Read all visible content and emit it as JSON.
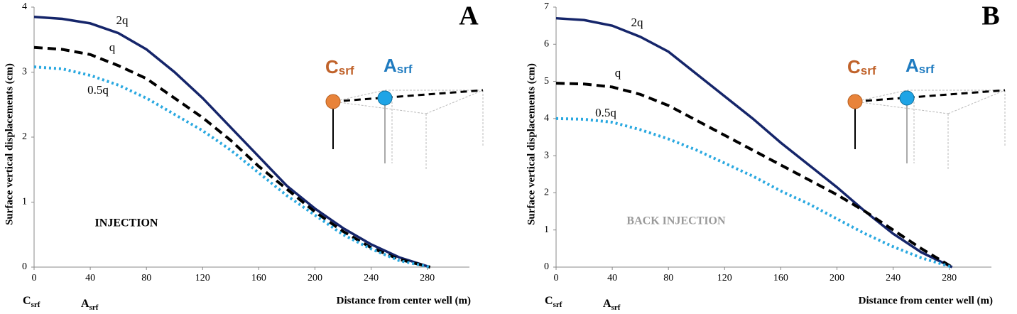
{
  "chart_data": [
    {
      "type": "line",
      "panel": "A",
      "annotation": "INJECTION",
      "annotation_color": "#000000",
      "y_label": "Surface vertical displacements (cm)",
      "x_label": "Distance from center well (m)",
      "x": [
        0,
        20,
        40,
        60,
        80,
        100,
        120,
        140,
        160,
        180,
        200,
        220,
        240,
        260,
        282
      ],
      "xlim": [
        0,
        310
      ],
      "xticks": [
        0,
        40,
        80,
        120,
        160,
        200,
        240,
        280
      ],
      "ylim": [
        0,
        4
      ],
      "yticks": [
        0,
        1,
        2,
        3,
        4
      ],
      "markers": [
        {
          "letter": "C",
          "sub": "srf"
        },
        {
          "letter": "A",
          "sub": "srf"
        }
      ],
      "series": [
        {
          "name": "2q",
          "color": "#15256a",
          "style": "solid",
          "values": [
            3.85,
            3.82,
            3.75,
            3.6,
            3.35,
            3.0,
            2.6,
            2.15,
            1.7,
            1.25,
            0.9,
            0.6,
            0.35,
            0.15,
            0
          ]
        },
        {
          "name": "q",
          "color": "#000000",
          "style": "dashed",
          "values": [
            3.38,
            3.35,
            3.27,
            3.1,
            2.9,
            2.6,
            2.3,
            1.95,
            1.55,
            1.2,
            0.85,
            0.55,
            0.3,
            0.12,
            0
          ]
        },
        {
          "name": "0.5q",
          "color": "#29a8e0",
          "style": "dotted",
          "values": [
            3.08,
            3.05,
            2.95,
            2.8,
            2.6,
            2.35,
            2.1,
            1.8,
            1.45,
            1.1,
            0.8,
            0.5,
            0.28,
            0.1,
            0
          ]
        }
      ]
    },
    {
      "type": "line",
      "panel": "B",
      "annotation": "BACK INJECTION",
      "annotation_color": "#9a9a9a",
      "y_label": "Surface vertical displacements (cm)",
      "x_label": "Distance from center well (m)",
      "x": [
        0,
        20,
        40,
        60,
        80,
        100,
        120,
        140,
        160,
        180,
        200,
        220,
        240,
        260,
        282
      ],
      "xlim": [
        0,
        310
      ],
      "xticks": [
        0,
        40,
        80,
        120,
        160,
        200,
        240,
        280
      ],
      "ylim": [
        0,
        7
      ],
      "yticks": [
        0,
        1,
        2,
        3,
        4,
        5,
        6,
        7
      ],
      "markers": [
        {
          "letter": "C",
          "sub": "srf"
        },
        {
          "letter": "A",
          "sub": "srf"
        }
      ],
      "series": [
        {
          "name": "2q",
          "color": "#15256a",
          "style": "solid",
          "values": [
            6.7,
            6.65,
            6.5,
            6.2,
            5.8,
            5.2,
            4.6,
            4.0,
            3.35,
            2.75,
            2.15,
            1.5,
            0.9,
            0.4,
            0
          ]
        },
        {
          "name": "q",
          "color": "#000000",
          "style": "dashed",
          "values": [
            4.95,
            4.93,
            4.85,
            4.65,
            4.35,
            3.95,
            3.55,
            3.15,
            2.75,
            2.35,
            1.95,
            1.5,
            1.0,
            0.5,
            0
          ]
        },
        {
          "name": "0.5q",
          "color": "#29a8e0",
          "style": "dotted",
          "values": [
            4.0,
            3.98,
            3.9,
            3.7,
            3.45,
            3.15,
            2.8,
            2.45,
            2.05,
            1.7,
            1.3,
            0.9,
            0.55,
            0.25,
            0
          ]
        }
      ]
    }
  ]
}
